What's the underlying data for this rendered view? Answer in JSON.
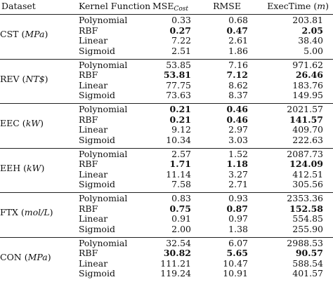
{
  "header": {
    "dataset": "Dataset",
    "kernel": "Kernel Function",
    "mse_prefix": "MSE",
    "mse_sub": "Cost",
    "rmse": "RMSE",
    "exec_prefix": "ExecTime (",
    "exec_unit": "m",
    "exec_suffix": ")"
  },
  "groups": [
    {
      "name": "CST",
      "unit": "MPa",
      "rows": [
        {
          "kernel": "Polynomial",
          "mse": "0.33",
          "rmse": "0.68",
          "exec": "203.81"
        },
        {
          "kernel": "RBF",
          "mse": "0.27",
          "rmse": "0.47",
          "exec": "2.05"
        },
        {
          "kernel": "Linear",
          "mse": "7.22",
          "rmse": "2.61",
          "exec": "38.40"
        },
        {
          "kernel": "Sigmoid",
          "mse": "2.51",
          "rmse": "1.86",
          "exec": "5.00"
        }
      ]
    },
    {
      "name": "REV",
      "unit": "NT$",
      "rows": [
        {
          "kernel": "Polynomial",
          "mse": "53.85",
          "rmse": "7.16",
          "exec": "971.62"
        },
        {
          "kernel": "RBF",
          "mse": "53.81",
          "rmse": "7.12",
          "exec": "26.46"
        },
        {
          "kernel": "Linear",
          "mse": "77.75",
          "rmse": "8.62",
          "exec": "183.76"
        },
        {
          "kernel": "Sigmoid",
          "mse": "73.63",
          "rmse": "8.37",
          "exec": "149.95"
        }
      ]
    },
    {
      "name": "EEC",
      "unit": "kW",
      "rows": [
        {
          "kernel": "Polynomial",
          "mse": "0.21",
          "rmse": "0.46",
          "exec": "2021.57"
        },
        {
          "kernel": "RBF",
          "mse": "0.21",
          "rmse": "0.46",
          "exec": "141.57"
        },
        {
          "kernel": "Linear",
          "mse": "9.12",
          "rmse": "2.97",
          "exec": "409.70"
        },
        {
          "kernel": "Sigmoid",
          "mse": "10.34",
          "rmse": "3.03",
          "exec": "222.63"
        }
      ]
    },
    {
      "name": "EEH",
      "unit": "kW",
      "rows": [
        {
          "kernel": "Polynomial",
          "mse": "2.57",
          "rmse": "1.52",
          "exec": "2087.73"
        },
        {
          "kernel": "RBF",
          "mse": "1.71",
          "rmse": "1.18",
          "exec": "124.09"
        },
        {
          "kernel": "Linear",
          "mse": "11.14",
          "rmse": "3.27",
          "exec": "412.51"
        },
        {
          "kernel": "Sigmoid",
          "mse": "7.58",
          "rmse": "2.71",
          "exec": "305.56"
        }
      ]
    },
    {
      "name": "FTX",
      "unit": "mol/L",
      "rows": [
        {
          "kernel": "Polynomial",
          "mse": "0.83",
          "rmse": "0.93",
          "exec": "2353.36"
        },
        {
          "kernel": "RBF",
          "mse": "0.75",
          "rmse": "0.87",
          "exec": "152.58"
        },
        {
          "kernel": "Linear",
          "mse": "0.91",
          "rmse": "0.97",
          "exec": "554.85"
        },
        {
          "kernel": "Sigmoid",
          "mse": "2.00",
          "rmse": "1.38",
          "exec": "255.90"
        }
      ]
    },
    {
      "name": "CON",
      "unit": "MPa",
      "rows": [
        {
          "kernel": "Polynomial",
          "mse": "32.54",
          "rmse": "6.07",
          "exec": "2988.53"
        },
        {
          "kernel": "RBF",
          "mse": "30.82",
          "rmse": "5.65",
          "exec": "90.57"
        },
        {
          "kernel": "Linear",
          "mse": "111.21",
          "rmse": "10.47",
          "exec": "588.54"
        },
        {
          "kernel": "Sigmoid",
          "mse": "119.24",
          "rmse": "10.91",
          "exec": "401.57"
        }
      ]
    }
  ],
  "bold_cells": {
    "0": {
      "1": [
        "mse",
        "rmse",
        "exec"
      ]
    },
    "1": {
      "1": [
        "mse",
        "rmse",
        "exec"
      ]
    },
    "2": {
      "0": [
        "mse",
        "rmse"
      ],
      "1": [
        "mse",
        "rmse",
        "exec"
      ]
    },
    "3": {
      "1": [
        "mse",
        "rmse",
        "exec"
      ]
    },
    "4": {
      "1": [
        "mse",
        "rmse",
        "exec"
      ]
    },
    "5": {
      "1": [
        "mse",
        "rmse",
        "exec"
      ]
    }
  }
}
